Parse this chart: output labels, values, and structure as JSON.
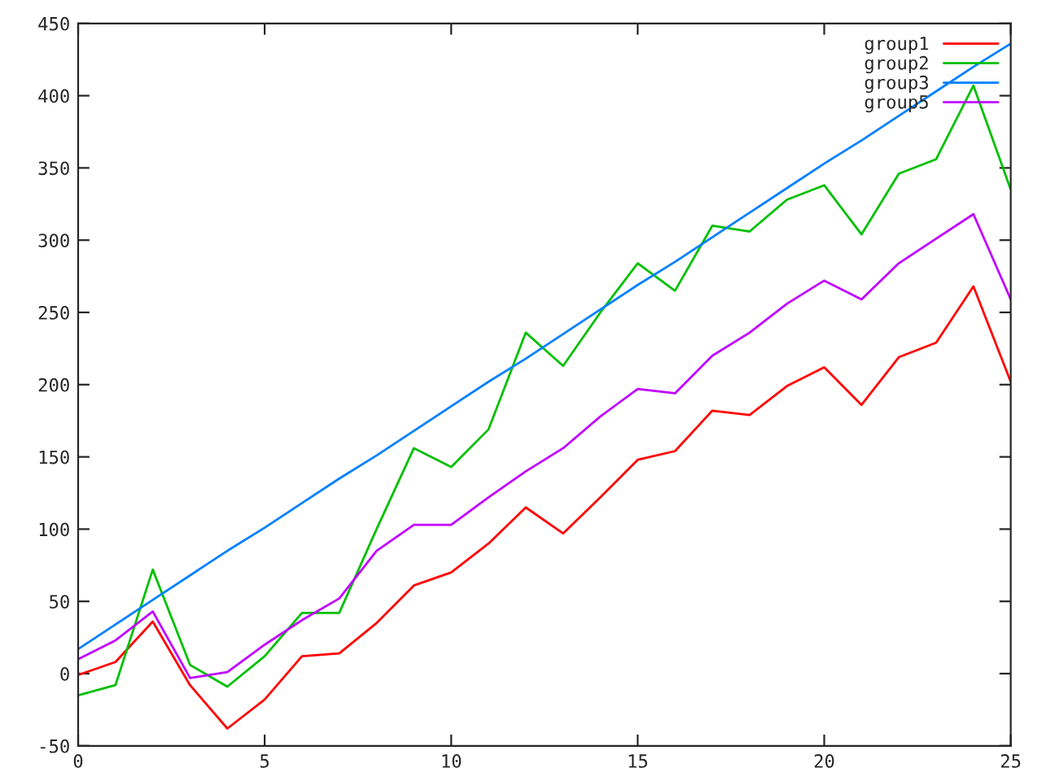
{
  "chart_data": {
    "type": "line",
    "x": [
      0,
      1,
      2,
      3,
      4,
      5,
      6,
      7,
      8,
      9,
      10,
      11,
      12,
      13,
      14,
      15,
      16,
      17,
      18,
      19,
      20,
      21,
      22,
      23,
      24,
      25
    ],
    "series": [
      {
        "name": "group1",
        "color": "#ff0000",
        "values": [
          -1,
          8,
          36,
          -8,
          -38,
          -18,
          12,
          14,
          35,
          61,
          70,
          90,
          115,
          97,
          122,
          148,
          154,
          182,
          179,
          199,
          212,
          186,
          219,
          229,
          268,
          202
        ]
      },
      {
        "name": "group2",
        "color": "#00c000",
        "values": [
          -15,
          -8,
          72,
          6,
          -9,
          12,
          42,
          42,
          100,
          156,
          143,
          169,
          236,
          213,
          250,
          284,
          265,
          310,
          306,
          328,
          338,
          304,
          346,
          356,
          407,
          335
        ]
      },
      {
        "name": "group3",
        "color": "#0080ff",
        "values": [
          17,
          34,
          51,
          68,
          85,
          101,
          118,
          135,
          151,
          168,
          185,
          202,
          218,
          235,
          252,
          269,
          285,
          302,
          319,
          336,
          353,
          369,
          386,
          403,
          420,
          436
        ]
      },
      {
        "name": "group5",
        "color": "#c000ff",
        "values": [
          10,
          23,
          43,
          -3,
          1,
          20,
          37,
          52,
          85,
          103,
          103,
          122,
          140,
          156,
          178,
          197,
          194,
          220,
          236,
          256,
          272,
          259,
          284,
          301,
          318,
          259
        ]
      }
    ],
    "xlim": [
      0,
      25
    ],
    "xticks": [
      0,
      5,
      10,
      15,
      20,
      25
    ],
    "ylim": [
      -50,
      450
    ],
    "yticks": [
      -50,
      0,
      50,
      100,
      150,
      200,
      250,
      300,
      350,
      400,
      450
    ],
    "legend": "top right",
    "grid": false,
    "marker": "none",
    "line_style": "solid"
  }
}
